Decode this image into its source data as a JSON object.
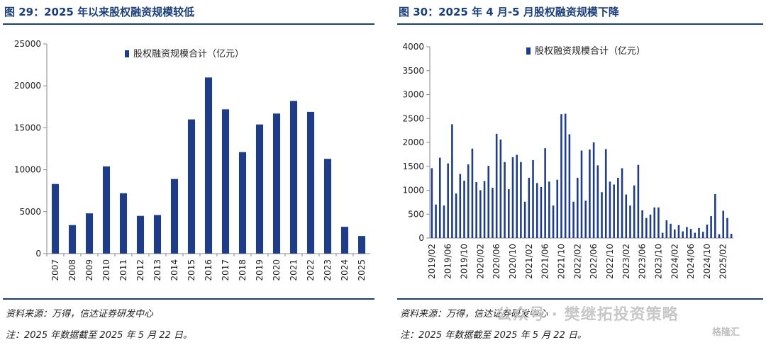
{
  "left": {
    "title": "图 29：2025 年以来股权融资规模较低",
    "source": "资料来源：万得，信达证券研发中心",
    "note": "注：2025 年数据截至 2025 年 5 月 22 日。"
  },
  "right": {
    "title": "图 30：2025 年 4 月-5 月股权融资规模下降",
    "source": "资料来源：万得，信达证券研发中心",
    "note": "注：2025 年数据截至 2025 年 5 月 22 日。"
  },
  "watermark": {
    "text": "公众号 · 樊继拓投资策略",
    "mark": "格隆汇"
  },
  "colors": {
    "bar": "#1f3c88",
    "rule": "#1a3f7a",
    "axis": "#888888"
  },
  "chart_data": [
    {
      "type": "bar",
      "title": "",
      "xlabel": "",
      "ylabel": "",
      "ylim": [
        0,
        25000
      ],
      "yticks": [
        0,
        5000,
        10000,
        15000,
        20000,
        25000
      ],
      "legend_position": "top-center",
      "grid": false,
      "categories": [
        "2007",
        "2008",
        "2009",
        "2010",
        "2011",
        "2012",
        "2013",
        "2014",
        "2015",
        "2016",
        "2017",
        "2018",
        "2019",
        "2020",
        "2021",
        "2022",
        "2023",
        "2024",
        "2025"
      ],
      "series": [
        {
          "name": "股权融资规模合计（亿元）",
          "values": [
            8300,
            3400,
            4800,
            10400,
            7200,
            4500,
            4600,
            8900,
            16000,
            21000,
            17200,
            12100,
            15400,
            16700,
            18200,
            16900,
            11300,
            3200,
            2100
          ]
        }
      ]
    },
    {
      "type": "bar",
      "title": "",
      "xlabel": "",
      "ylabel": "",
      "ylim": [
        0,
        4000
      ],
      "yticks": [
        0,
        500,
        1000,
        1500,
        2000,
        2500,
        3000,
        3500,
        4000
      ],
      "legend_position": "top-center",
      "grid": false,
      "x_start": "2019/02",
      "tick_labels": [
        "2019/02",
        "2019/06",
        "2019/10",
        "2020/02",
        "2020/06",
        "2020/10",
        "2021/02",
        "2021/06",
        "2021/10",
        "2022/02",
        "2022/06",
        "2022/10",
        "2023/02",
        "2023/06",
        "2023/10",
        "2024/02",
        "2024/06",
        "2024/10",
        "2025/02"
      ],
      "series": [
        {
          "name": "股权融资规模合计（亿元）",
          "values": [
            1460,
            700,
            1680,
            680,
            1560,
            2380,
            930,
            1340,
            1200,
            1540,
            1870,
            1170,
            1000,
            1190,
            1510,
            1050,
            2180,
            2060,
            1590,
            1020,
            1690,
            1740,
            1590,
            760,
            1260,
            1630,
            1150,
            1070,
            1880,
            1180,
            680,
            1220,
            2590,
            2600,
            2170,
            760,
            1260,
            1830,
            780,
            1850,
            2000,
            1520,
            960,
            1860,
            1180,
            1120,
            1260,
            1460,
            910,
            680,
            1100,
            1530,
            580,
            420,
            490,
            640,
            640,
            110,
            370,
            300,
            180,
            270,
            140,
            230,
            190,
            110,
            210,
            130,
            280,
            460,
            920,
            80,
            570,
            420,
            90
          ]
        }
      ]
    }
  ]
}
